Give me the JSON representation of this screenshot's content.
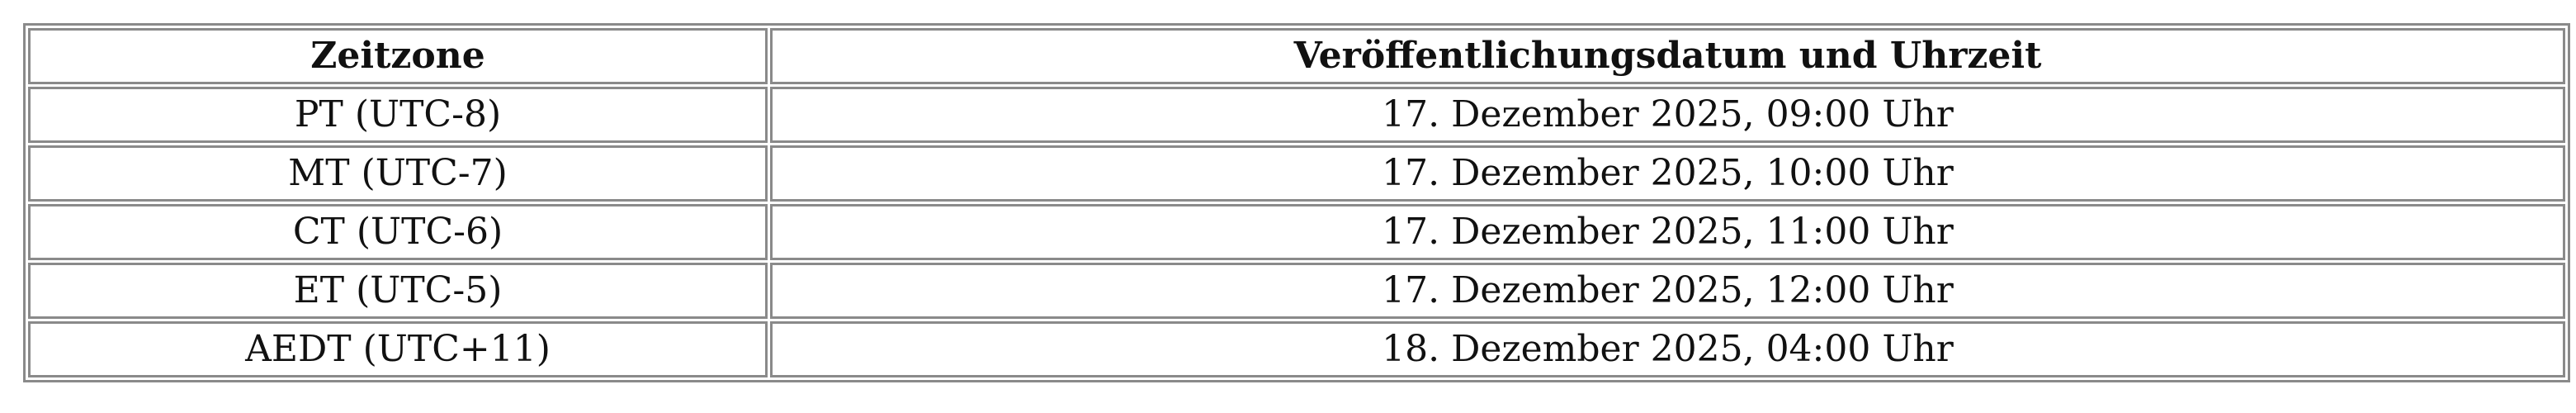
{
  "table": {
    "headers": [
      "Zeitzone",
      "Veröffentlichungsdatum und Uhrzeit"
    ],
    "rows": [
      [
        "PT (UTC-8)",
        "17. Dezember 2025, 09:00 Uhr"
      ],
      [
        "MT (UTC-7)",
        "17. Dezember 2025, 10:00 Uhr"
      ],
      [
        "CT (UTC-6)",
        "17. Dezember 2025, 11:00 Uhr"
      ],
      [
        "ET (UTC-5)",
        "17. Dezember 2025, 12:00 Uhr"
      ],
      [
        "AEDT (UTC+11)",
        "18. Dezember 2025, 04:00 Uhr"
      ]
    ]
  }
}
